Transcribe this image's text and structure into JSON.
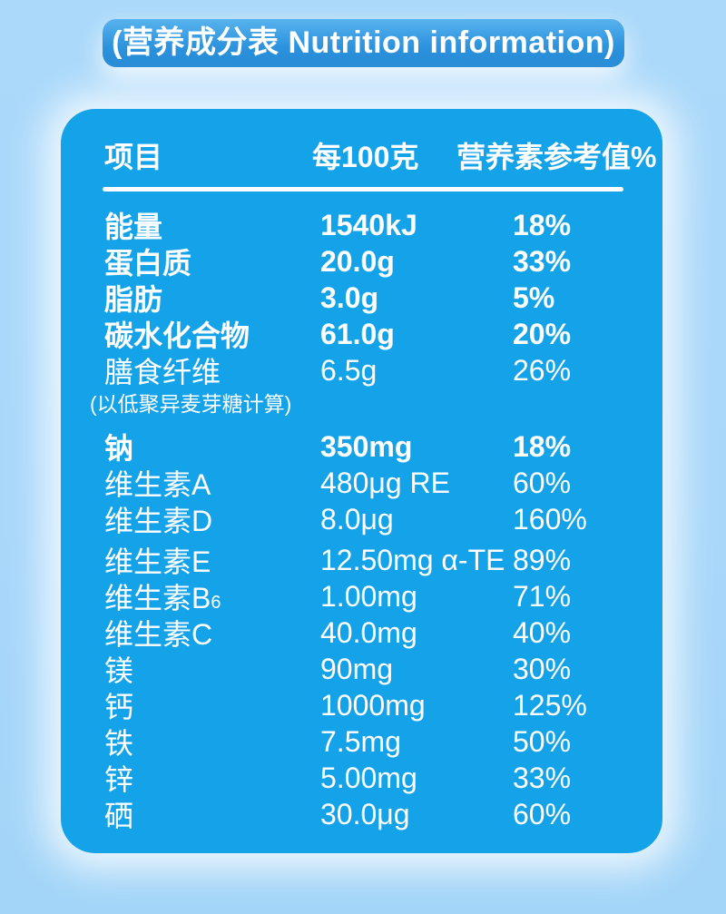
{
  "banner": {
    "title": "(营养成分表 Nutrition information)"
  },
  "table": {
    "headers": {
      "item": "项目",
      "per100g": "每100克",
      "nrv": "营养素参考值%"
    },
    "rows": [
      {
        "label": "能量",
        "value": "1540kJ",
        "nrv": "18%"
      },
      {
        "label": "蛋白质",
        "value": "20.0g",
        "nrv": "33%"
      },
      {
        "label": "脂肪",
        "value": "3.0g",
        "nrv": "5%"
      },
      {
        "label": "碳水化合物",
        "value": "61.0g",
        "nrv": "20%"
      },
      {
        "label": "膳食纤维",
        "value": "6.5g",
        "nrv": "26%"
      },
      {
        "label": "钠",
        "value": "350mg",
        "nrv": "18%"
      },
      {
        "label": "维生素A",
        "value": "480μg RE",
        "nrv": "60%"
      },
      {
        "label": "维生素D",
        "value": "8.0μg",
        "nrv": "160%"
      },
      {
        "label": "维生素E",
        "value": "12.50mg α-TE",
        "nrv": "89%"
      },
      {
        "label": "维生素B",
        "sub": "6",
        "value": "1.00mg",
        "nrv": "71%"
      },
      {
        "label": "维生素C",
        "value": "40.0mg",
        "nrv": "40%"
      },
      {
        "label": "镁",
        "value": "90mg",
        "nrv": "30%"
      },
      {
        "label": "钙",
        "value": "1000mg",
        "nrv": "125%"
      },
      {
        "label": "铁",
        "value": "7.5mg",
        "nrv": "50%"
      },
      {
        "label": "锌",
        "value": "5.00mg",
        "nrv": "33%"
      },
      {
        "label": "硒",
        "value": "30.0μg",
        "nrv": "60%"
      }
    ],
    "note": "(以低聚异麦芽糖计算)"
  },
  "colors": {
    "background": "#A9D7FA",
    "card": "#14A2E8",
    "banner_top": "#58B3EE",
    "banner_bottom": "#1E86D4",
    "text": "#FFFFFF"
  }
}
